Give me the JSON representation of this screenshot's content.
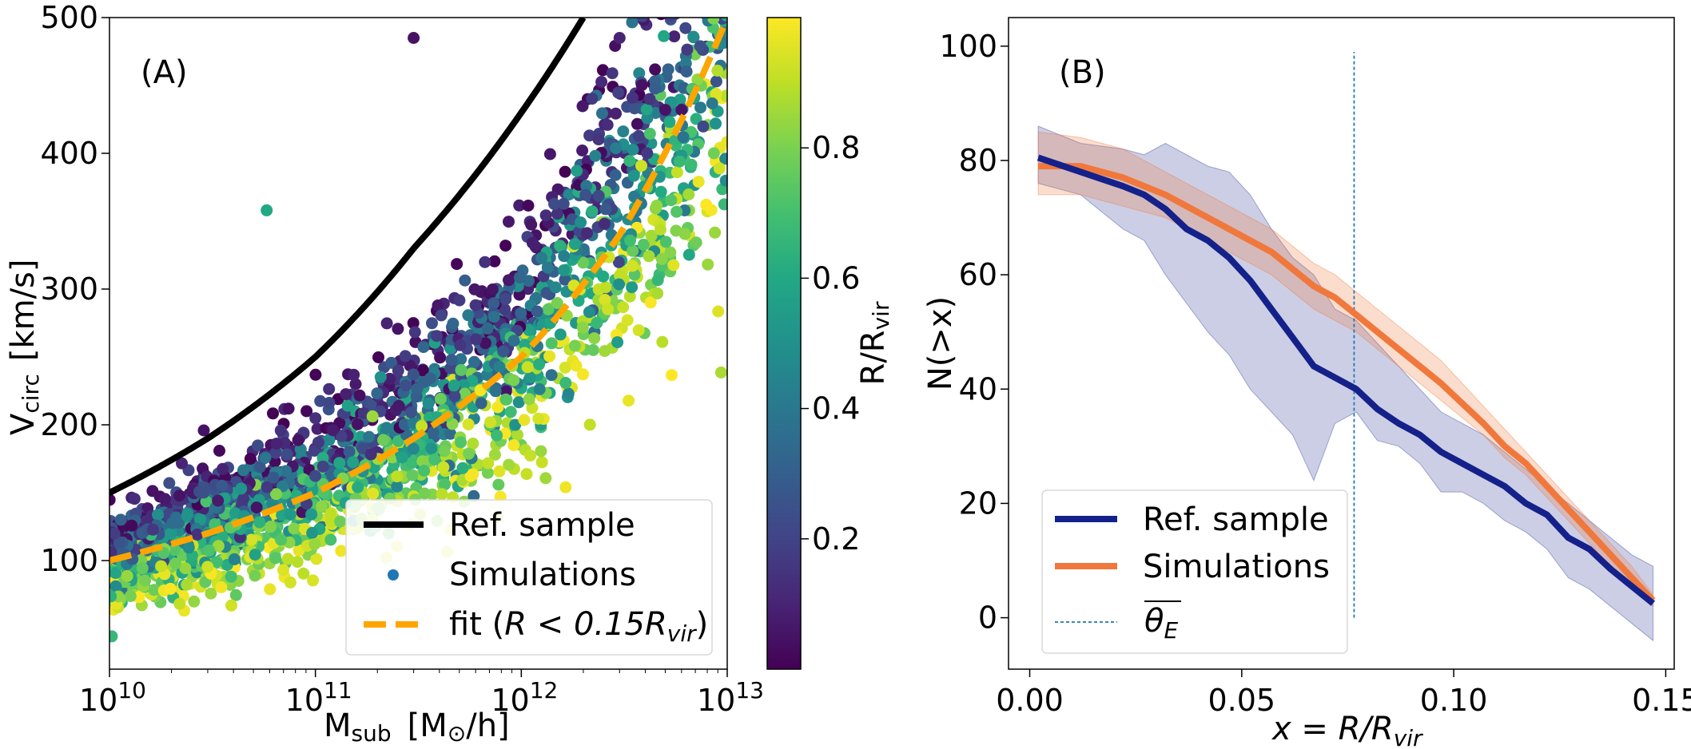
{
  "chart_data": [
    {
      "type": "scatter",
      "panel_label": "(A)",
      "xscale": "log",
      "xlim": [
        10000000000,
        10000000000000
      ],
      "ylim": [
        20,
        500
      ],
      "xticks": [
        10000000000,
        100000000000,
        1000000000000,
        10000000000000
      ],
      "xtick_base": "10",
      "xtick_exponents": [
        "10",
        "11",
        "12",
        "13"
      ],
      "yticks": [
        100,
        200,
        300,
        400,
        500
      ],
      "ytick_labels": [
        "100",
        "200",
        "300",
        "400",
        "500"
      ],
      "xlabel": "M",
      "xlabel_sub": "sub",
      "xlabel_units": "[M",
      "xlabel_units_sub": "⊙",
      "xlabel_units_end": "/h]",
      "ylabel": "V",
      "ylabel_sub": "circ",
      "ylabel_units": "[km/s]",
      "colorbar": {
        "label": "R/R",
        "label_sub": "vir",
        "range": [
          0,
          1
        ],
        "ticks": [
          0.2,
          0.4,
          0.6,
          0.8
        ],
        "tick_labels": [
          "0.2",
          "0.4",
          "0.6",
          "0.8"
        ],
        "colormap": "viridis"
      },
      "series": [
        {
          "name": "Ref. sample",
          "kind": "line",
          "color": "#000000",
          "x": [
            10000000000,
            30000000000,
            100000000000,
            300000000000,
            1000000000000,
            2000000000000
          ],
          "y": [
            150,
            190,
            250,
            330,
            430,
            500
          ]
        },
        {
          "name": "Simulations",
          "kind": "scatter",
          "color": "#1f77b4",
          "n_points": 2400,
          "trend_x": [
            10000000000,
            100000000000,
            1000000000000,
            10000000000000
          ],
          "trend_y": [
            100,
            155,
            260,
            500
          ],
          "description": "simulated subhalo points colored by R/Rvir"
        },
        {
          "name": "fit (R < 0.15R_vir)",
          "kind": "dashed-line",
          "color": "#ffa500",
          "x": [
            10000000000,
            30000000000,
            100000000000,
            300000000000,
            1000000000000,
            3000000000000,
            10000000000000
          ],
          "y": [
            100,
            120,
            150,
            190,
            250,
            340,
            500
          ]
        }
      ],
      "legend": {
        "placement": "lower-right",
        "entries": [
          {
            "label": "Ref. sample",
            "style": "line",
            "color": "#000000"
          },
          {
            "label": "Simulations",
            "style": "marker",
            "color": "#1f77b4"
          },
          {
            "label_prefix": "fit (",
            "label_math": "R < 0.15R",
            "label_sub": "vir",
            "label_suffix": ")",
            "style": "dashed",
            "color": "#ffa500"
          }
        ]
      },
      "outliers": [
        {
          "x": 3000000000000,
          "y": 485,
          "r": 0.1
        },
        {
          "x": 4200000000000,
          "y": 440,
          "r": 0.15
        },
        {
          "x": 6000000000000,
          "y": 432,
          "r": 0.05
        },
        {
          "x": 5000000000000,
          "y": 432,
          "r": 0.05
        },
        {
          "x": 58000000000,
          "y": 358,
          "r": 0.6
        },
        {
          "x": 300000000000,
          "y": 485,
          "r": 0.05
        }
      ]
    },
    {
      "type": "line",
      "panel_label": "(B)",
      "xlim": [
        -0.005,
        0.152
      ],
      "ylim": [
        -9,
        105
      ],
      "xticks": [
        0.0,
        0.05,
        0.1,
        0.15
      ],
      "xtick_labels": [
        "0.00",
        "0.05",
        "0.10",
        "0.15"
      ],
      "yticks": [
        0,
        20,
        40,
        60,
        80,
        100
      ],
      "ytick_labels": [
        "0",
        "20",
        "40",
        "60",
        "80",
        "100"
      ],
      "xlabel": "x = R/R",
      "xlabel_sub": "vir",
      "ylabel": "N(>x)",
      "x": [
        0.002,
        0.012,
        0.022,
        0.027,
        0.032,
        0.037,
        0.042,
        0.047,
        0.052,
        0.057,
        0.062,
        0.067,
        0.072,
        0.077,
        0.082,
        0.087,
        0.092,
        0.097,
        0.102,
        0.107,
        0.112,
        0.117,
        0.122,
        0.127,
        0.132,
        0.137,
        0.142,
        0.147
      ],
      "series": [
        {
          "name": "Ref. sample",
          "color": "#15218a",
          "values": [
            80.5,
            78,
            75.5,
            74,
            71.5,
            68,
            66,
            63,
            59,
            54,
            49,
            44,
            42,
            40,
            36.5,
            34,
            32,
            29,
            27,
            25,
            23,
            20,
            18,
            14,
            12,
            8.5,
            5.5,
            2.5
          ],
          "band_lower": [
            76,
            74,
            68,
            66,
            60,
            55,
            50,
            46,
            40,
            36,
            32,
            24,
            34,
            36,
            31,
            30,
            27,
            22,
            22,
            20,
            17,
            15,
            12,
            7,
            5,
            2,
            -1,
            -4
          ],
          "band_upper": [
            86,
            83,
            82,
            81,
            83,
            81,
            79,
            78,
            74,
            68,
            63,
            60,
            54,
            52,
            48,
            44,
            40,
            36,
            34,
            32,
            29,
            26,
            23,
            20,
            17,
            14,
            11,
            9
          ]
        },
        {
          "name": "Simulations",
          "color": "#f0783c",
          "values": [
            79,
            79,
            77,
            75.5,
            74,
            72,
            70,
            68,
            66,
            64,
            61,
            58,
            56,
            53,
            50,
            47,
            44,
            41,
            37.5,
            34,
            30,
            27,
            23,
            19,
            15,
            11,
            7,
            3
          ],
          "band_lower": [
            74,
            74,
            72,
            71,
            70,
            68,
            66,
            64,
            62,
            60,
            57,
            54,
            52,
            50,
            47,
            44,
            41,
            38,
            35,
            32,
            28,
            25,
            21,
            17,
            13,
            9,
            5,
            2
          ],
          "band_upper": [
            85,
            84,
            82,
            80,
            78,
            76,
            74,
            72,
            70,
            68,
            65,
            62,
            60,
            57,
            54,
            51,
            48,
            45,
            41,
            37,
            33,
            29,
            25,
            21,
            17,
            13,
            9,
            4
          ]
        },
        {
          "name": "theta_E",
          "kind": "vline",
          "color": "#1f77b4",
          "x": 0.0765,
          "y_range": [
            0,
            99
          ]
        }
      ],
      "legend": {
        "placement": "lower-left",
        "entries": [
          {
            "label": "Ref. sample",
            "style": "line",
            "color": "#15218a"
          },
          {
            "label": "Simulations",
            "style": "line",
            "color": "#f0783c"
          },
          {
            "label_symbol": "θ",
            "label_sub": "E",
            "overline": true,
            "style": "dashed-thin",
            "color": "#1f77b4"
          }
        ]
      }
    }
  ]
}
